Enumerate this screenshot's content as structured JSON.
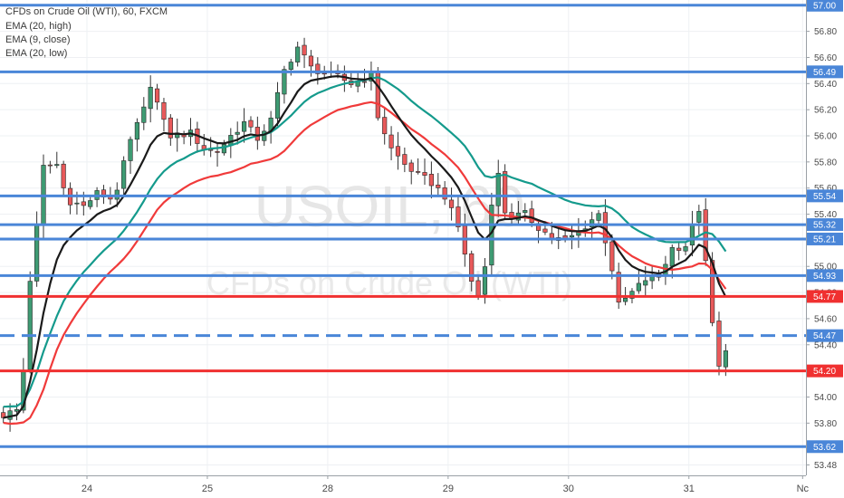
{
  "chart_data": {
    "type": "candlestick",
    "legend": {
      "title": "CFDs on Crude Oil (WTI), 60, FXCM",
      "indicators": [
        "EMA (20, high)",
        "EMA (9, close)",
        "EMA (20, low)"
      ]
    },
    "watermark": {
      "symbol": "USOIL, 60",
      "description": "CFDs on Crude Oil (WTI)"
    },
    "y_axis": {
      "range": [
        53.4,
        57.04
      ],
      "ticks": [
        "53.48",
        "53.80",
        "54.00",
        "54.20",
        "54.40",
        "54.60",
        "54.80",
        "55.00",
        "55.20",
        "55.40",
        "55.60",
        "55.80",
        "56.00",
        "56.20",
        "56.40",
        "56.60",
        "56.80"
      ]
    },
    "x_axis": {
      "labels": [
        "24",
        "25",
        "28",
        "29",
        "30",
        "31",
        "Nc"
      ],
      "label_x_index": [
        12.5,
        30.5,
        48.5,
        66.5,
        84.5,
        102.5,
        119.5
      ],
      "index_range": [
        -0.5,
        120
      ]
    },
    "horizontal_levels": [
      {
        "price": 57.0,
        "label": "57.00",
        "color": "#4a86d8",
        "style": "solid"
      },
      {
        "price": 56.49,
        "label": "56.49",
        "color": "#4a86d8",
        "style": "solid"
      },
      {
        "price": 55.54,
        "label": "55.54",
        "color": "#4a86d8",
        "style": "solid"
      },
      {
        "price": 55.32,
        "label": "55.32",
        "color": "#4a86d8",
        "style": "solid"
      },
      {
        "price": 55.21,
        "label": "55.21",
        "color": "#4a86d8",
        "style": "solid"
      },
      {
        "price": 54.93,
        "label": "54.93",
        "color": "#4a86d8",
        "style": "solid"
      },
      {
        "price": 54.77,
        "label": "54.77",
        "color": "#f03030",
        "style": "solid"
      },
      {
        "price": 54.47,
        "label": "54.47",
        "color": "#4a86d8",
        "style": "dashed"
      },
      {
        "price": 54.2,
        "label": "54.20",
        "color": "#f03030",
        "style": "solid"
      },
      {
        "price": 53.62,
        "label": "53.62",
        "color": "#4a86d8",
        "style": "solid"
      }
    ],
    "colors": {
      "up": "#3e9b73",
      "down": "#e8595a",
      "wick": "#333333",
      "ema_high": "#149a8c",
      "ema_close": "#1a1a1a",
      "ema_low": "#f03a3a",
      "grid": "#eef0f3"
    },
    "close_anchors": [
      [
        0,
        53.86
      ],
      [
        2,
        53.9
      ],
      [
        3,
        54.2
      ],
      [
        4,
        54.9
      ],
      [
        5,
        55.3
      ],
      [
        6,
        55.76
      ],
      [
        8,
        55.78
      ],
      [
        9,
        55.6
      ],
      [
        10,
        55.5
      ],
      [
        12,
        55.46
      ],
      [
        14,
        55.56
      ],
      [
        16,
        55.52
      ],
      [
        17,
        55.6
      ],
      [
        19,
        55.96
      ],
      [
        21,
        56.2
      ],
      [
        22,
        56.4
      ],
      [
        24,
        56.1
      ],
      [
        25,
        56.0
      ],
      [
        28,
        56.02
      ],
      [
        30,
        55.9
      ],
      [
        32,
        55.88
      ],
      [
        34,
        56.0
      ],
      [
        36,
        56.1
      ],
      [
        38,
        55.98
      ],
      [
        40,
        56.12
      ],
      [
        42,
        56.5
      ],
      [
        44,
        56.68
      ],
      [
        46,
        56.52
      ],
      [
        48,
        56.48
      ],
      [
        50,
        56.45
      ],
      [
        52,
        56.4
      ],
      [
        54,
        56.44
      ],
      [
        55,
        56.46
      ],
      [
        56,
        56.15
      ],
      [
        58,
        55.9
      ],
      [
        60,
        55.78
      ],
      [
        62,
        55.7
      ],
      [
        64,
        55.64
      ],
      [
        66,
        55.54
      ],
      [
        68,
        55.3
      ],
      [
        69,
        55.1
      ],
      [
        70,
        54.88
      ],
      [
        71,
        54.78
      ],
      [
        72,
        55.0
      ],
      [
        73,
        55.5
      ],
      [
        74,
        55.7
      ],
      [
        75,
        55.42
      ],
      [
        76,
        55.38
      ],
      [
        78,
        55.4
      ],
      [
        80,
        55.3
      ],
      [
        82,
        55.22
      ],
      [
        84,
        55.2
      ],
      [
        86,
        55.26
      ],
      [
        88,
        55.36
      ],
      [
        89,
        55.4
      ],
      [
        90,
        55.2
      ],
      [
        91,
        54.98
      ],
      [
        92,
        54.7
      ],
      [
        94,
        54.8
      ],
      [
        96,
        54.9
      ],
      [
        98,
        54.92
      ],
      [
        100,
        55.14
      ],
      [
        102,
        55.16
      ],
      [
        103,
        55.3
      ],
      [
        104,
        55.44
      ],
      [
        105,
        55.02
      ],
      [
        106,
        54.56
      ],
      [
        107,
        54.22
      ],
      [
        108,
        54.38
      ]
    ],
    "ohlc_note": "Candle series derived from close anchors; 109 hourly candles."
  }
}
